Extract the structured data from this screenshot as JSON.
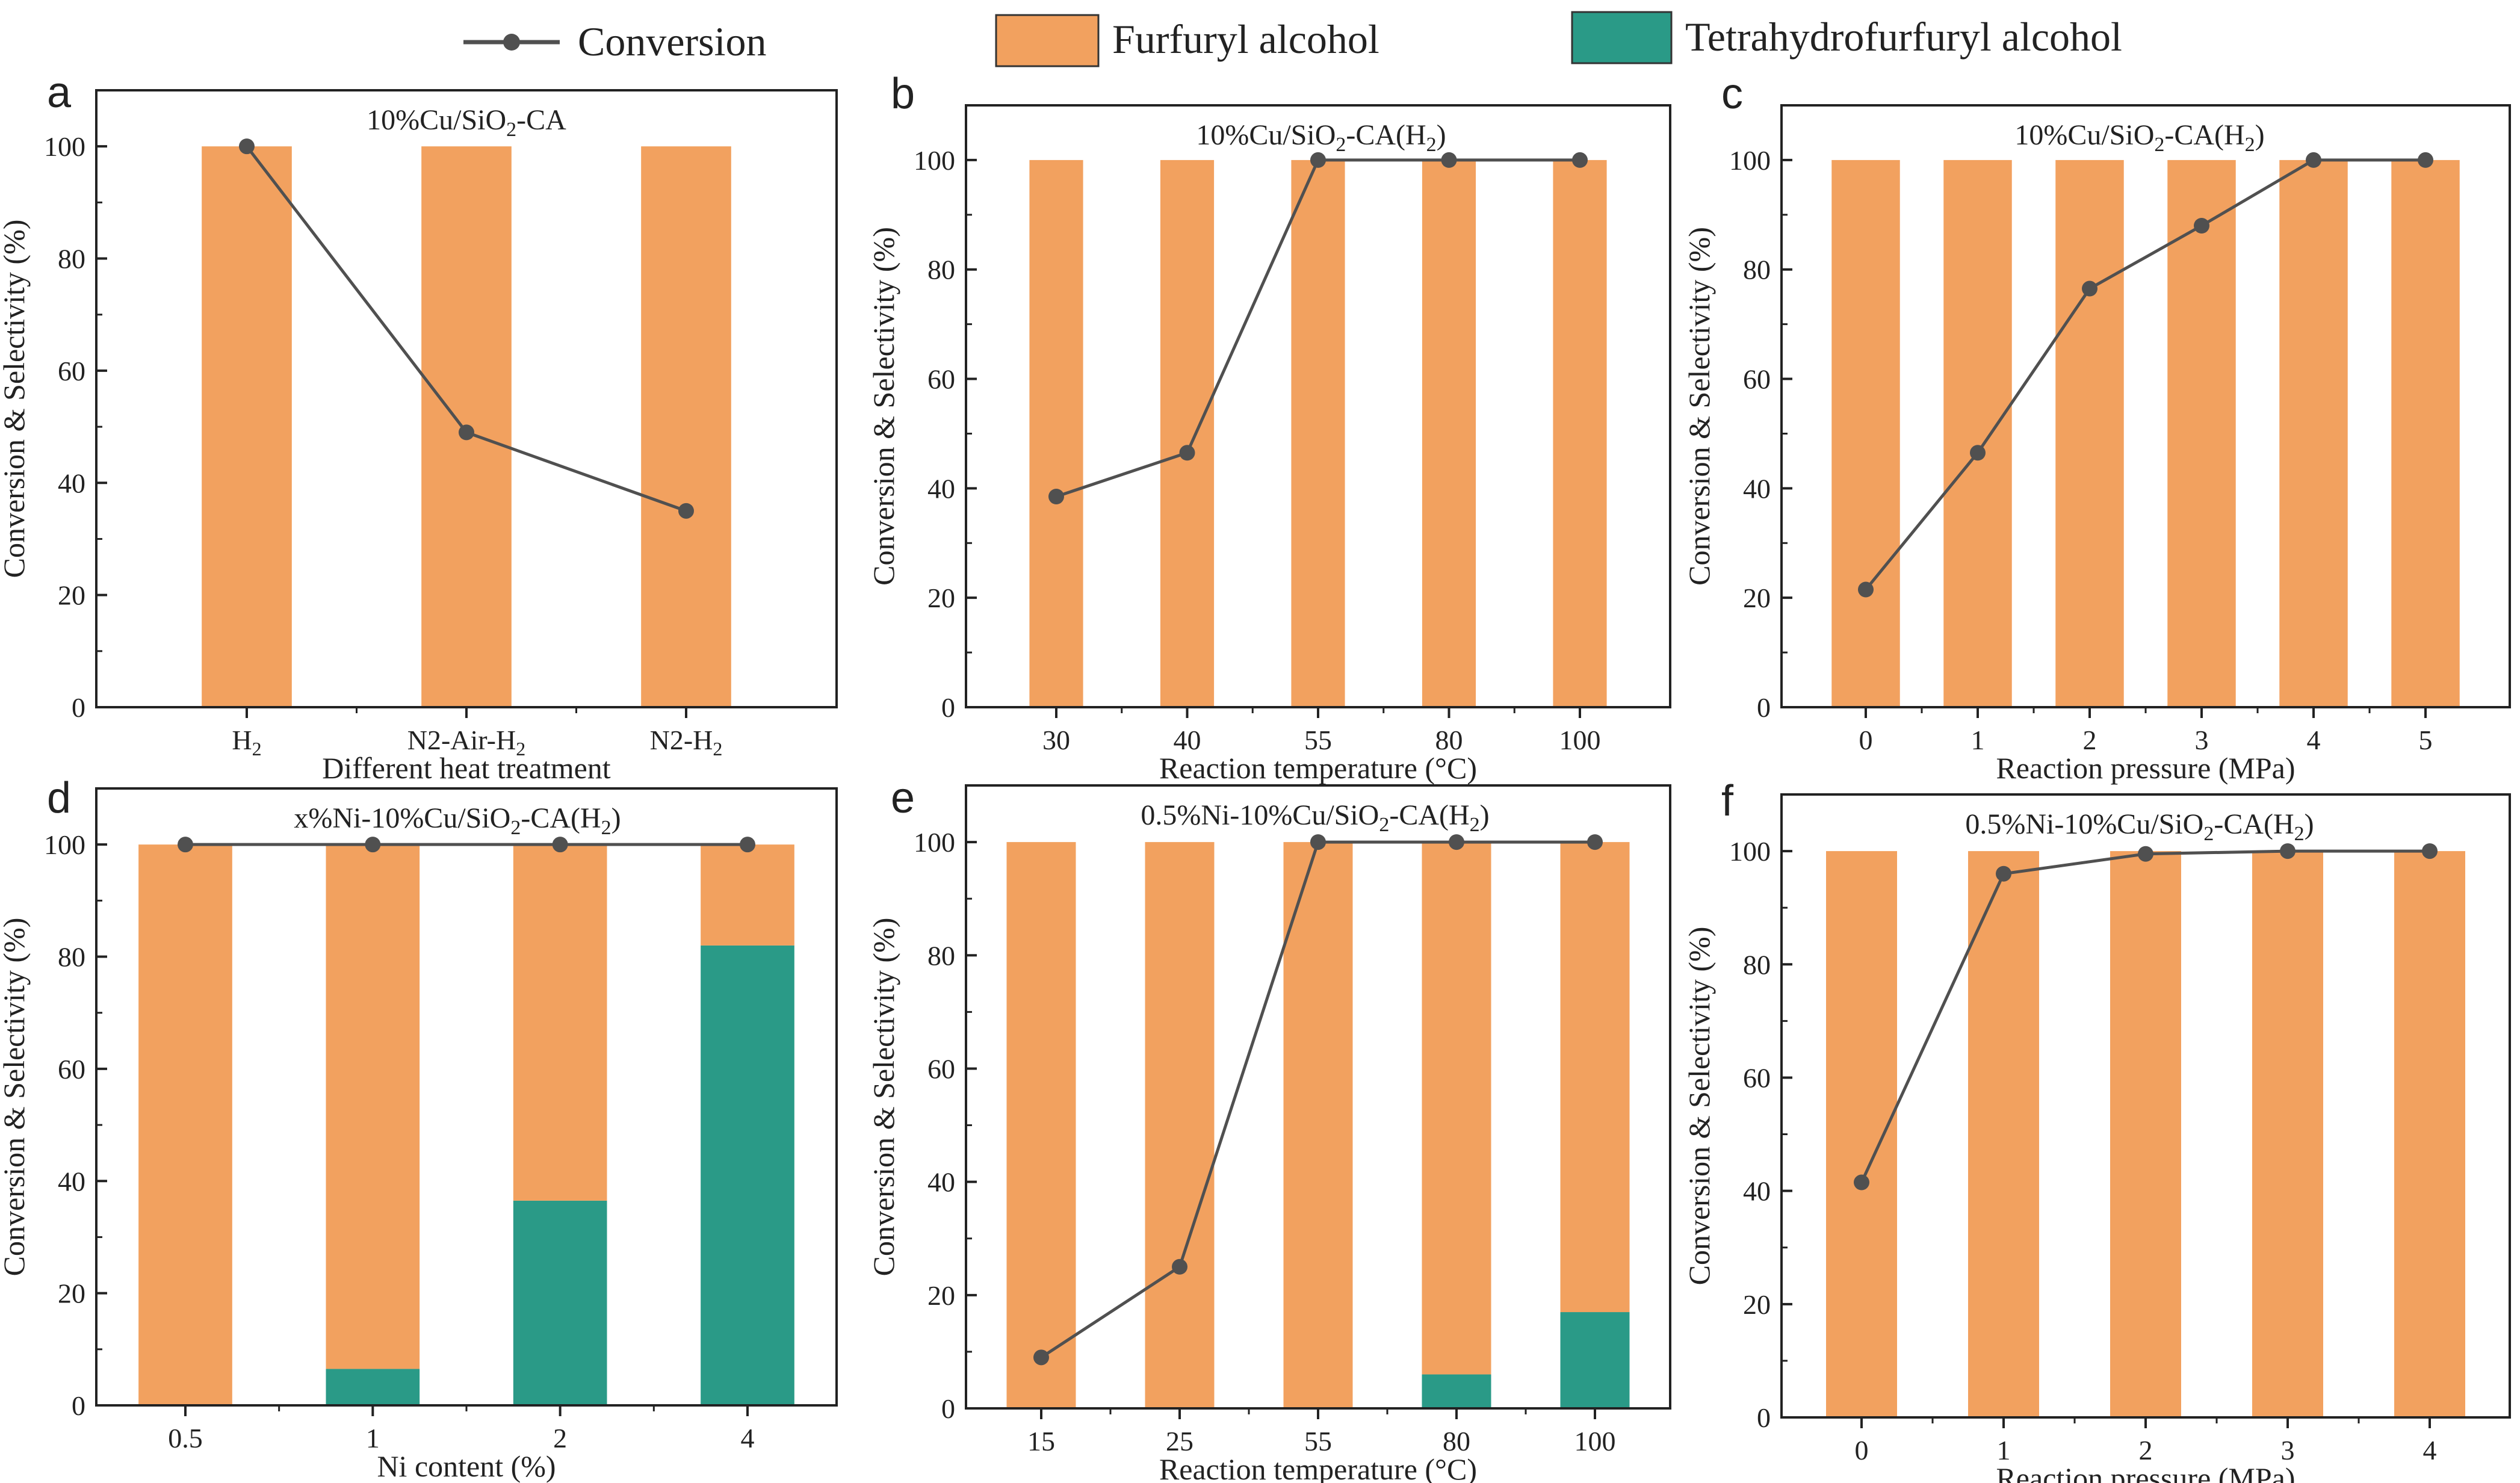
{
  "legend": {
    "conversion_label": "Conversion",
    "furfuryl_label": "Furfuryl alcohol",
    "thfa_label": "Tetrahydrofurfuryl alcohol"
  },
  "colors": {
    "furfuryl": "#F2A15F",
    "thfa": "#2A9A87",
    "conversion": "#505050",
    "axis": "#222222"
  },
  "chart_data": [
    {
      "panel": "a",
      "type": "bar",
      "title": "10%Cu/SiO2-CA",
      "xlabel": "Different heat treatment",
      "ylabel": "Conversion & Selectivity (%)",
      "categories": [
        "H2",
        "N2-Air-H2",
        "N2-H2"
      ],
      "ylim": [
        0,
        110
      ],
      "yticks": [
        0,
        20,
        40,
        60,
        80,
        100
      ],
      "series": [
        {
          "name": "Furfuryl alcohol",
          "values": [
            100,
            100,
            100
          ]
        },
        {
          "name": "Tetrahydrofurfuryl alcohol",
          "values": [
            0,
            0,
            0
          ]
        },
        {
          "name": "Conversion",
          "values": [
            100,
            49,
            35
          ]
        }
      ]
    },
    {
      "panel": "b",
      "type": "bar",
      "title": "10%Cu/SiO2-CA(H2)",
      "xlabel": "Reaction temperature (°C)",
      "ylabel": "Conversion & Selectivity (%)",
      "categories": [
        "30",
        "40",
        "55",
        "80",
        "100"
      ],
      "ylim": [
        0,
        110
      ],
      "yticks": [
        0,
        20,
        40,
        60,
        80,
        100
      ],
      "series": [
        {
          "name": "Furfuryl alcohol",
          "values": [
            100,
            100,
            100,
            100,
            100
          ]
        },
        {
          "name": "Tetrahydrofurfuryl alcohol",
          "values": [
            0,
            0,
            0,
            0,
            0
          ]
        },
        {
          "name": "Conversion",
          "values": [
            38.5,
            46.5,
            100,
            100,
            100
          ]
        }
      ]
    },
    {
      "panel": "c",
      "type": "bar",
      "title": "10%Cu/SiO2-CA(H2)",
      "xlabel": "Reaction pressure (MPa)",
      "ylabel": "Conversion & Selectivity (%)",
      "categories": [
        "0",
        "1",
        "2",
        "3",
        "4",
        "5"
      ],
      "ylim": [
        0,
        110
      ],
      "yticks": [
        0,
        20,
        40,
        60,
        80,
        100
      ],
      "series": [
        {
          "name": "Furfuryl alcohol",
          "values": [
            100,
            100,
            100,
            100,
            100,
            100
          ]
        },
        {
          "name": "Tetrahydrofurfuryl alcohol",
          "values": [
            0,
            0,
            0,
            0,
            0,
            0
          ]
        },
        {
          "name": "Conversion",
          "values": [
            21.5,
            46.5,
            76.5,
            88,
            100,
            100
          ]
        }
      ]
    },
    {
      "panel": "d",
      "type": "bar",
      "title": "x%Ni-10%Cu/SiO2-CA(H2)",
      "xlabel": "Ni content (%)",
      "ylabel": "Conversion & Selectivity (%)",
      "categories": [
        "0.5",
        "1",
        "2",
        "4"
      ],
      "ylim": [
        0,
        110
      ],
      "yticks": [
        0,
        20,
        40,
        60,
        80,
        100
      ],
      "series": [
        {
          "name": "Furfuryl alcohol",
          "values": [
            100,
            93.5,
            63.5,
            18
          ]
        },
        {
          "name": "Tetrahydrofurfuryl alcohol",
          "values": [
            0,
            6.5,
            36.5,
            82
          ]
        },
        {
          "name": "Conversion",
          "values": [
            100,
            100,
            100,
            100
          ]
        }
      ]
    },
    {
      "panel": "e",
      "type": "bar",
      "title": "0.5%Ni-10%Cu/SiO2-CA(H2)",
      "xlabel": "Reaction temperature (°C)",
      "ylabel": "Conversion & Selectivity (%)",
      "categories": [
        "15",
        "25",
        "55",
        "80",
        "100"
      ],
      "ylim": [
        0,
        110
      ],
      "yticks": [
        0,
        20,
        40,
        60,
        80,
        100
      ],
      "series": [
        {
          "name": "Furfuryl alcohol",
          "values": [
            100,
            100,
            100,
            94,
            83
          ]
        },
        {
          "name": "Tetrahydrofurfuryl alcohol",
          "values": [
            0,
            0,
            0,
            6,
            17
          ]
        },
        {
          "name": "Conversion",
          "values": [
            9,
            25,
            100,
            100,
            100
          ]
        }
      ]
    },
    {
      "panel": "f",
      "type": "bar",
      "title": "0.5%Ni-10%Cu/SiO2-CA(H2)",
      "xlabel": "Reaction pressure (MPa)",
      "ylabel": "Conversion & Selectivity (%)",
      "categories": [
        "0",
        "1",
        "2",
        "3",
        "4"
      ],
      "ylim": [
        0,
        110
      ],
      "yticks": [
        0,
        20,
        40,
        60,
        80,
        100
      ],
      "series": [
        {
          "name": "Furfuryl alcohol",
          "values": [
            100,
            100,
            100,
            100,
            100
          ]
        },
        {
          "name": "Tetrahydrofurfuryl alcohol",
          "values": [
            0,
            0,
            0,
            0,
            0
          ]
        },
        {
          "name": "Conversion",
          "values": [
            41.5,
            96,
            99.5,
            100,
            100
          ]
        }
      ]
    }
  ]
}
